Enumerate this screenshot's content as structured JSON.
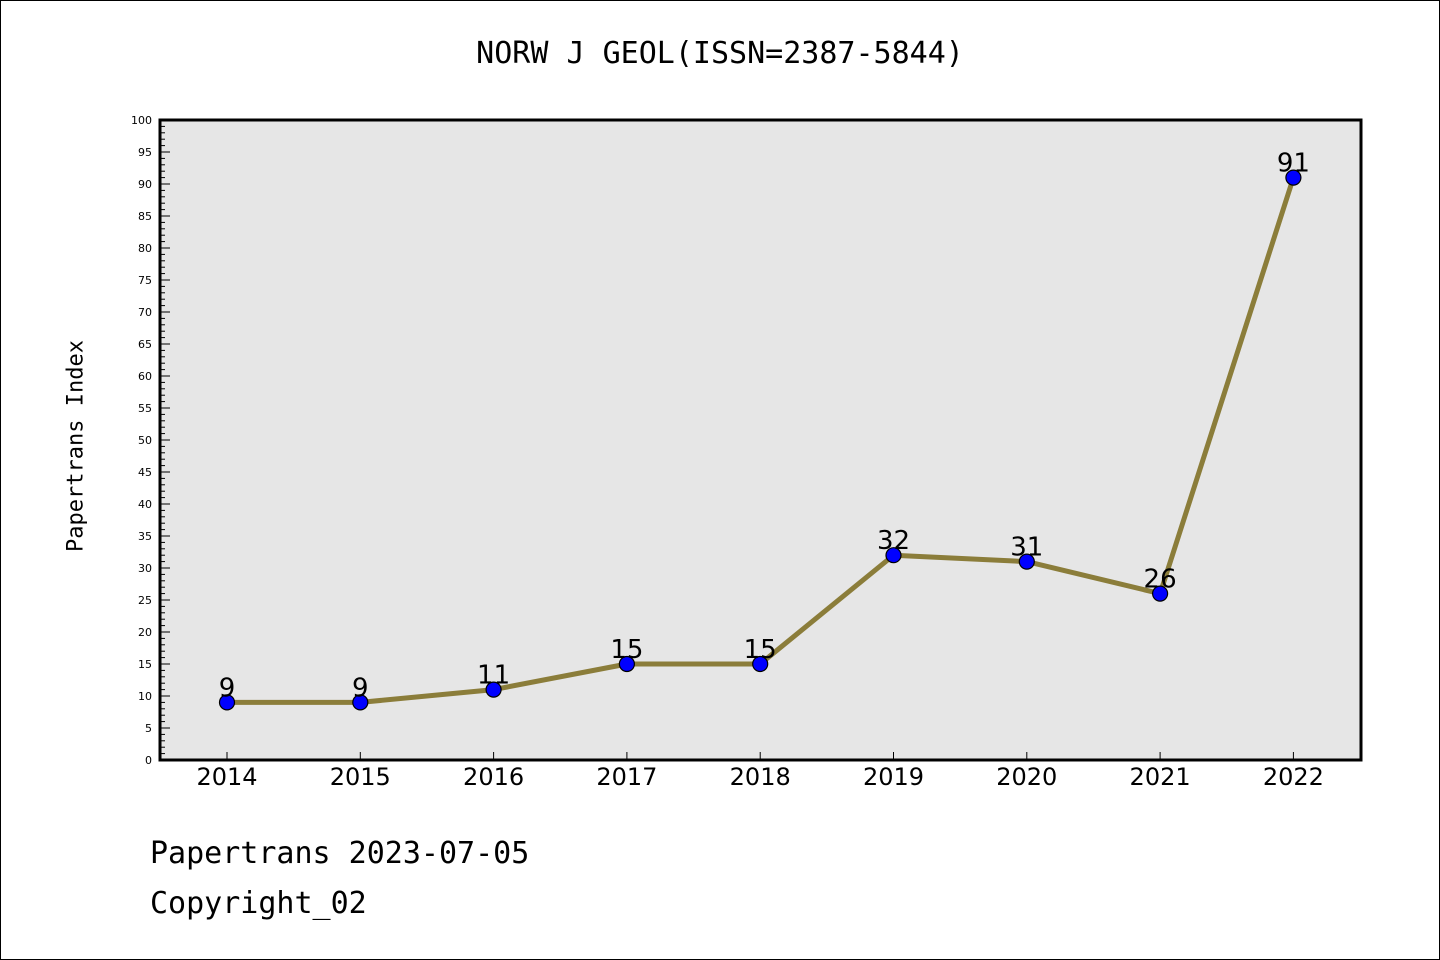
{
  "title": "NORW J GEOL(ISSN=2387-5844)",
  "footer": {
    "line1": "Papertrans 2023-07-05",
    "line2": "Copyright_02"
  },
  "chart_data": {
    "type": "line",
    "title": "NORW J GEOL(ISSN=2387-5844)",
    "xlabel": "",
    "ylabel": "Papertrans Index",
    "categories": [
      "2014",
      "2015",
      "2016",
      "2017",
      "2018",
      "2019",
      "2020",
      "2021",
      "2022"
    ],
    "series": [
      {
        "values": [
          9,
          9,
          11,
          15,
          15,
          32,
          31,
          26,
          91
        ]
      }
    ],
    "data_labels": [
      "9",
      "9",
      "11",
      "15",
      "15",
      "32",
      "31",
      "26",
      "91"
    ],
    "ylim": [
      0,
      100
    ],
    "yticks": [
      0,
      5,
      10,
      15,
      20,
      25,
      30,
      35,
      40,
      45,
      50,
      55,
      60,
      65,
      70,
      75,
      80,
      85,
      90,
      95,
      100
    ],
    "grid": false,
    "legend": "none",
    "colors": {
      "line": "#8b7d3a",
      "marker": "#0000ff",
      "plot_background": "#e6e6e6"
    }
  }
}
